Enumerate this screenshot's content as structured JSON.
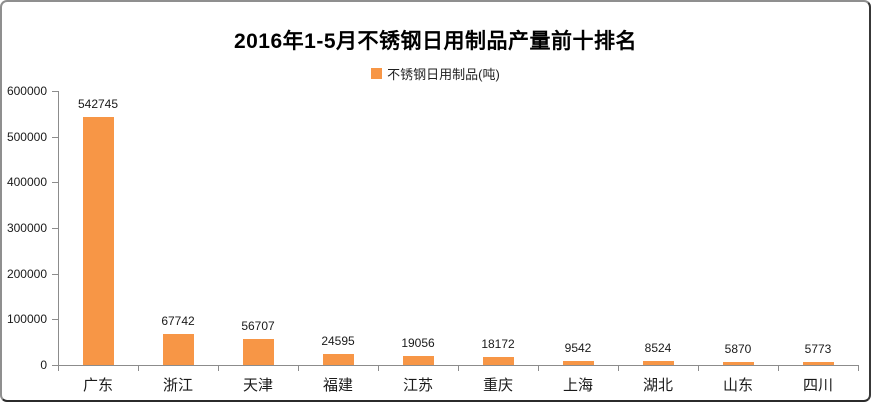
{
  "title": "2016年1-5月不锈钢日用制品产量前十排名",
  "legend": {
    "label": "不锈钢日用制品(吨)",
    "marker_color": "#F79646"
  },
  "chart_data": {
    "type": "bar",
    "title": "2016年1-5月不锈钢日用制品产量前十排名",
    "series_name": "不锈钢日用制品(吨)",
    "categories": [
      "广东",
      "浙江",
      "天津",
      "福建",
      "江苏",
      "重庆",
      "上海",
      "湖北",
      "山东",
      "四川"
    ],
    "values": [
      542745,
      67742,
      56707,
      24595,
      19056,
      18172,
      9542,
      8524,
      5870,
      5773
    ],
    "xlabel": "",
    "ylabel": "",
    "ylim": [
      0,
      600000
    ],
    "ytick_interval": 100000,
    "ytick_labels": [
      "0",
      "100000",
      "200000",
      "300000",
      "400000",
      "500000",
      "600000"
    ],
    "grid": false,
    "legend_position": "top",
    "data_labels": true,
    "bar_color": "#F79646",
    "axis_color": "#8C8C8C",
    "label_color": "#1a1a1a",
    "background_color": "#FFFFFF"
  }
}
